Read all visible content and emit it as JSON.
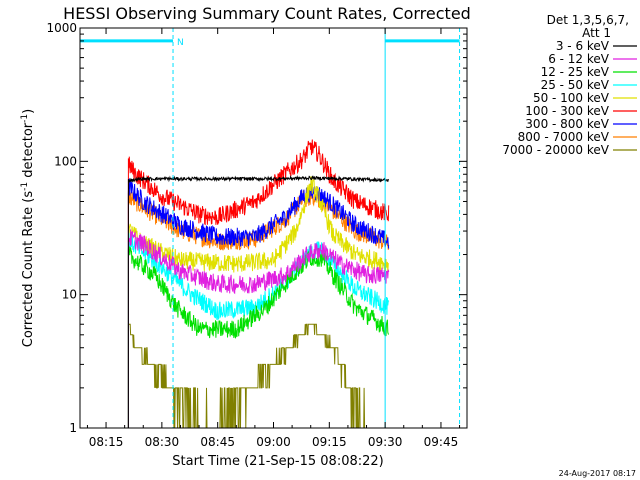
{
  "chart_data": {
    "type": "line",
    "title": "HESSI Observing Summary Count Rates, Corrected",
    "xlabel": "Start Time (21-Sep-15 08:08:22)",
    "ylabel_main": "Corrected Count Rate (s",
    "ylabel_sup1": "-1",
    "ylabel_mid": " detector",
    "ylabel_sup2": "-1",
    "ylabel_end": ")",
    "yscale": "log",
    "ylim": [
      1,
      1000
    ],
    "xlim_minutes": [
      488,
      592
    ],
    "x_ticks": [
      {
        "t": 495,
        "label": "08:15"
      },
      {
        "t": 510,
        "label": "08:30"
      },
      {
        "t": 525,
        "label": "08:45"
      },
      {
        "t": 540,
        "label": "09:00"
      },
      {
        "t": 555,
        "label": "09:15"
      },
      {
        "t": 570,
        "label": "09:30"
      },
      {
        "t": 585,
        "label": "09:45"
      }
    ],
    "y_ticks": [
      {
        "v": 1,
        "label": "1"
      },
      {
        "v": 10,
        "label": "10"
      },
      {
        "v": 100,
        "label": "100"
      },
      {
        "v": 1000,
        "label": "1000"
      }
    ],
    "legend_header": [
      "Det 1,3,5,6,7,",
      "Att 1"
    ],
    "series": [
      {
        "name": "3 - 6 keV",
        "color": "#000000",
        "x": [
          501,
          505,
          520,
          540,
          550,
          560,
          571
        ],
        "y": [
          72,
          74,
          74,
          74,
          75,
          74,
          72
        ]
      },
      {
        "name": "6 - 12 keV",
        "color": "#e020e0",
        "x": [
          501,
          505,
          515,
          525,
          535,
          543,
          549,
          553,
          558,
          565,
          571
        ],
        "y": [
          27,
          24,
          15,
          12,
          12,
          14,
          20,
          22,
          17,
          14,
          14
        ]
      },
      {
        "name": "12 - 25 keV",
        "color": "#00e000",
        "x": [
          501,
          503,
          508,
          514,
          520,
          530,
          538,
          545,
          550,
          553,
          556,
          562,
          571
        ],
        "y": [
          20,
          18,
          14,
          8,
          5.5,
          5.5,
          8,
          14,
          19,
          19,
          14,
          8,
          5.5
        ]
      },
      {
        "name": "25 - 50 keV",
        "color": "#00ffff",
        "x": [
          501,
          503,
          510,
          518,
          525,
          535,
          543,
          549,
          553,
          556,
          562,
          571
        ],
        "y": [
          26,
          23,
          16,
          10,
          7.5,
          8,
          12,
          20,
          22,
          17,
          11,
          8
        ]
      },
      {
        "name": "50 - 100 keV",
        "color": "#e0e000",
        "x": [
          501,
          505,
          515,
          530,
          540,
          546,
          549,
          550,
          552,
          556,
          562,
          571
        ],
        "y": [
          31,
          24,
          18,
          17,
          18,
          30,
          55,
          68,
          55,
          28,
          20,
          17
        ]
      },
      {
        "name": "100 - 300 keV",
        "color": "#ff0000",
        "x": [
          501,
          503,
          510,
          520,
          525,
          535,
          543,
          548,
          550,
          552,
          556,
          562,
          571
        ],
        "y": [
          95,
          80,
          55,
          40,
          38,
          50,
          80,
          105,
          130,
          115,
          72,
          50,
          40
        ]
      },
      {
        "name": "300 - 800 keV",
        "color": "#0000ff",
        "x": [
          501,
          505,
          515,
          525,
          535,
          543,
          548,
          551,
          555,
          562,
          571
        ],
        "y": [
          65,
          50,
          33,
          27,
          27,
          38,
          55,
          60,
          50,
          33,
          25
        ]
      },
      {
        "name": "800 - 7000 keV",
        "color": "#ff7f00",
        "x": [
          501,
          505,
          515,
          525,
          535,
          543,
          548,
          551,
          555,
          562,
          571
        ],
        "y": [
          55,
          45,
          30,
          25,
          26,
          36,
          52,
          55,
          45,
          30,
          24
        ]
      },
      {
        "name": "7000 - 20000 keV",
        "color": "#808000",
        "x": [
          501,
          503,
          507,
          511,
          514,
          518,
          521,
          524,
          528,
          532,
          536,
          540,
          544,
          547,
          550,
          553,
          556,
          559,
          562,
          565
        ],
        "y": [
          6,
          4,
          3,
          2.3,
          1.7,
          1.4,
          1.1,
          1,
          1.3,
          1.8,
          2.3,
          3,
          4,
          5,
          6,
          5,
          4,
          2.5,
          1.6,
          1.1
        ]
      }
    ],
    "annotations": [
      {
        "kind": "night",
        "label": "N",
        "x_start": 488,
        "x_end": 513,
        "level": 800
      },
      {
        "kind": "night",
        "label": "",
        "x_start": 570,
        "x_end": 590,
        "level": 800
      }
    ],
    "footer_date": "24-Aug-2017 08:17"
  }
}
